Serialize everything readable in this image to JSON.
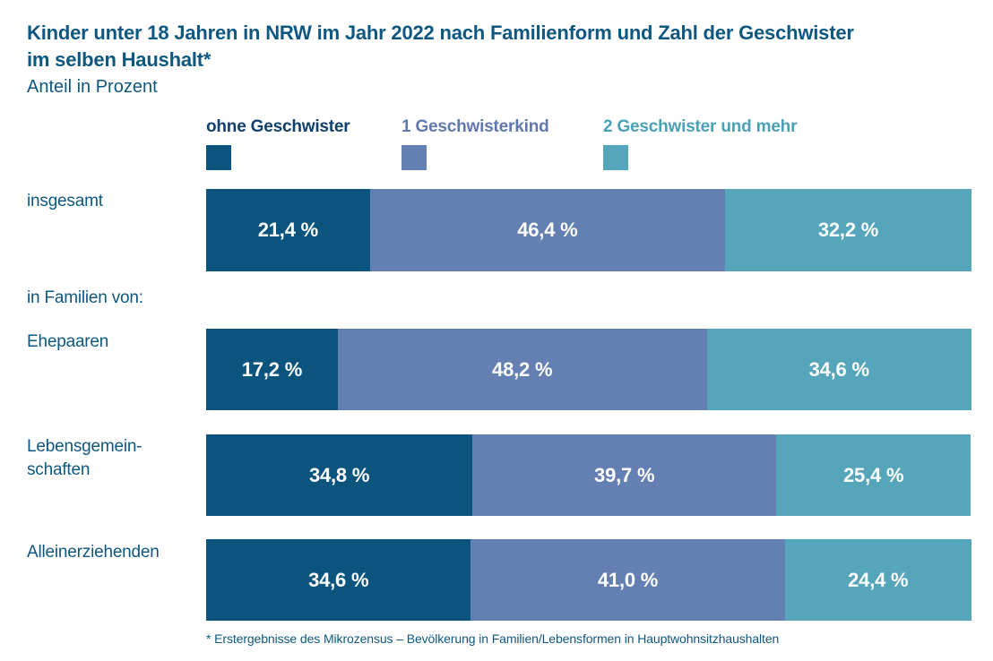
{
  "header": {
    "title": "Kinder unter 18 Jahren in NRW im Jahr 2022 nach Familienform und Zahl der Geschwister\nim selben Haushalt*",
    "subtitle": "Anteil in Prozent"
  },
  "chart_data": {
    "type": "bar",
    "variant": "horizontal-stacked-100",
    "unit": "percent",
    "title": "Kinder unter 18 Jahren in NRW im Jahr 2022 nach Familienform und Zahl der Geschwister im selben Haushalt*",
    "subtitle": "Anteil in Prozent",
    "xlim": [
      0,
      100
    ],
    "grid": false,
    "legend_position": "top",
    "series": [
      "ohne Geschwister",
      "1 Geschwisterkind",
      "2 Geschwister und mehr"
    ],
    "colors": [
      "#0a547e",
      "#647fb2",
      "#55a6ba"
    ],
    "legend": [
      {
        "label": "ohne Geschwister",
        "color": "#0a547e",
        "text_color": "#10406d"
      },
      {
        "label": "1 Geschwisterkind",
        "color": "#647fb2",
        "text_color": "#6078ae"
      },
      {
        "label": "2 Geschwister und mehr",
        "color": "#55a6ba",
        "text_color": "#4aa0b6"
      }
    ],
    "section_label": "in Familien von:",
    "rows": [
      {
        "category": "insgesamt",
        "values": [
          21.4,
          46.4,
          32.2
        ],
        "labels": [
          "21,4 %",
          "46,4 %",
          "32,2 %"
        ]
      },
      {
        "category": "Ehepaaren",
        "values": [
          17.2,
          48.2,
          34.6
        ],
        "labels": [
          "17,2 %",
          "48,2 %",
          "34,6 %"
        ]
      },
      {
        "category": "Lebensgemein-\nschaften",
        "values": [
          34.8,
          39.7,
          25.4
        ],
        "labels": [
          "34,8 %",
          "39,7 %",
          "25,4 %"
        ]
      },
      {
        "category": "Alleinerziehenden",
        "values": [
          34.6,
          41.0,
          24.4
        ],
        "labels": [
          "34,6 %",
          "41,0 %",
          "24,4 %"
        ]
      }
    ],
    "footnote": "* Erstergebnisse des Mikrozensus – Bevölkerung in Familien/Lebensformen in Hauptwohnsitzhaushalten"
  }
}
